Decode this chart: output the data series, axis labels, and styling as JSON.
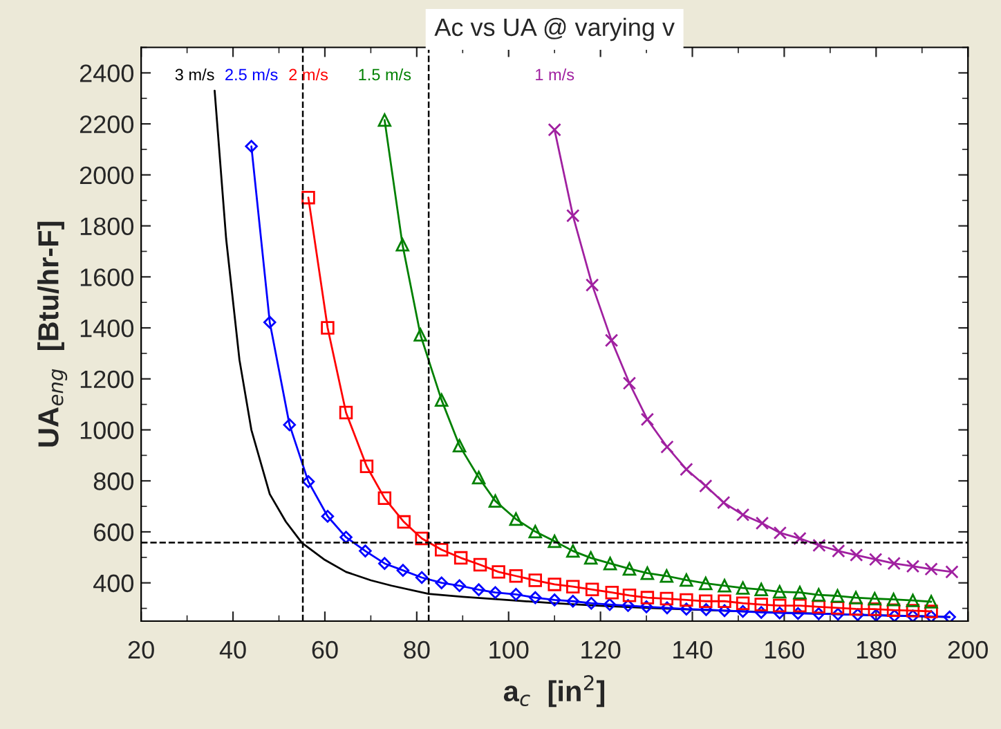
{
  "chart_data": {
    "type": "line",
    "title": "Ac vs UA @ varying v",
    "xlabel": "a$_{c}$  [in$^{2}$]",
    "ylabel": "UA$_{eng}$  [Btu/hr-F]",
    "xlim": [
      20,
      200
    ],
    "ylim": [
      250,
      2500
    ],
    "xticks": [
      20,
      40,
      60,
      80,
      100,
      120,
      140,
      160,
      180,
      200
    ],
    "yticks": [
      400,
      600,
      800,
      1000,
      1200,
      1400,
      1600,
      1800,
      2000,
      2200,
      2400
    ],
    "grid": false,
    "legend": false,
    "series": [
      {
        "name": "3 m/s",
        "color": "#000000",
        "marker": "none",
        "x": [
          36,
          38.5,
          41.4,
          44,
          48,
          51.5,
          55,
          60,
          64.6,
          70,
          74.5,
          82.6,
          90,
          98,
          110,
          120,
          130,
          140,
          150,
          160,
          170,
          180,
          190,
          196
        ],
        "values": [
          2330,
          1750,
          1275,
          1000,
          748,
          640,
          557,
          490,
          443,
          410,
          389,
          357,
          345,
          335,
          320,
          310,
          302,
          295,
          289,
          283,
          278,
          273,
          269,
          266
        ]
      },
      {
        "name": "2.5 m/s",
        "color": "#0000ff",
        "marker": "diamond",
        "x": [
          44,
          48,
          52.3,
          56.4,
          60.6,
          64.6,
          68.8,
          73,
          77,
          81.1,
          85.4,
          89.3,
          93.5,
          97.1,
          101.6,
          105.8,
          110,
          114,
          118,
          122,
          126,
          130,
          134.5,
          138.7,
          143,
          147,
          151,
          155,
          159,
          163,
          167.5,
          171.7,
          176,
          180,
          184,
          188,
          192,
          196
        ],
        "values": [
          2112,
          1422,
          1020,
          797,
          661,
          579,
          525,
          476,
          449,
          421,
          400,
          389,
          373,
          362,
          355,
          342,
          333,
          328,
          320,
          315,
          311,
          306,
          302,
          297,
          295,
          291,
          288,
          284,
          282,
          280,
          279,
          277,
          275,
          273,
          271,
          270,
          268,
          266
        ]
      },
      {
        "name": "2 m/s",
        "color": "#ff0000",
        "marker": "square",
        "x": [
          56.4,
          60.6,
          64.6,
          69.1,
          73,
          77.2,
          81.1,
          85.4,
          89.6,
          93.8,
          97.8,
          101.6,
          105.8,
          110,
          114,
          118.2,
          122.5,
          126.3,
          130.2,
          134.4,
          138.7,
          142.9,
          147,
          151,
          155,
          159,
          163.4,
          167.5,
          171.6,
          175.6,
          179.7,
          183.8,
          188,
          192
        ],
        "values": [
          1911,
          1400,
          1068,
          857,
          732,
          639,
          574,
          530,
          498,
          471,
          443,
          427,
          410,
          394,
          385,
          374,
          362,
          351,
          342,
          338,
          333,
          328,
          328,
          320,
          315,
          311,
          311,
          306,
          302,
          298,
          297,
          293,
          291,
          288
        ]
      },
      {
        "name": "1.5 m/s",
        "color": "#008000",
        "marker": "triangle",
        "x": [
          73,
          76.9,
          80.8,
          85.4,
          89.3,
          93.5,
          97.1,
          101.6,
          105.8,
          110,
          114,
          117.9,
          122.1,
          126.3,
          130.2,
          134.4,
          138.7,
          142.9,
          147,
          151,
          155,
          159,
          163.4,
          167.5,
          171.6,
          175.6,
          179.7,
          183.8,
          188,
          192
        ],
        "values": [
          2215,
          1726,
          1373,
          1117,
          938,
          813,
          721,
          650,
          601,
          563,
          525,
          498,
          476,
          455,
          438,
          427,
          411,
          398,
          389,
          380,
          374,
          365,
          362,
          353,
          349,
          342,
          338,
          335,
          331,
          326
        ]
      },
      {
        "name": "1 m/s",
        "color": "#a020a0",
        "marker": "cross",
        "x": [
          110,
          114,
          118.2,
          122.4,
          126.3,
          130.2,
          134.5,
          138.7,
          142.9,
          146.8,
          151,
          155.2,
          159.1,
          163.4,
          167.6,
          171.8,
          175.7,
          179.9,
          183.9,
          188,
          192,
          196.5
        ],
        "values": [
          2177,
          1840,
          1568,
          1351,
          1183,
          1041,
          933,
          845,
          780,
          715,
          667,
          634,
          596,
          574,
          547,
          525,
          509,
          492,
          476,
          465,
          454,
          443
        ]
      }
    ],
    "ref_lines": [
      {
        "axis": "x",
        "value": 55.2,
        "color": "#000000",
        "line_style": "dashed"
      },
      {
        "axis": "x",
        "value": 82.6,
        "color": "#000000",
        "line_style": "dashed"
      },
      {
        "axis": "y",
        "value": 558,
        "color": "#000000",
        "line_style": "dashed"
      }
    ]
  }
}
